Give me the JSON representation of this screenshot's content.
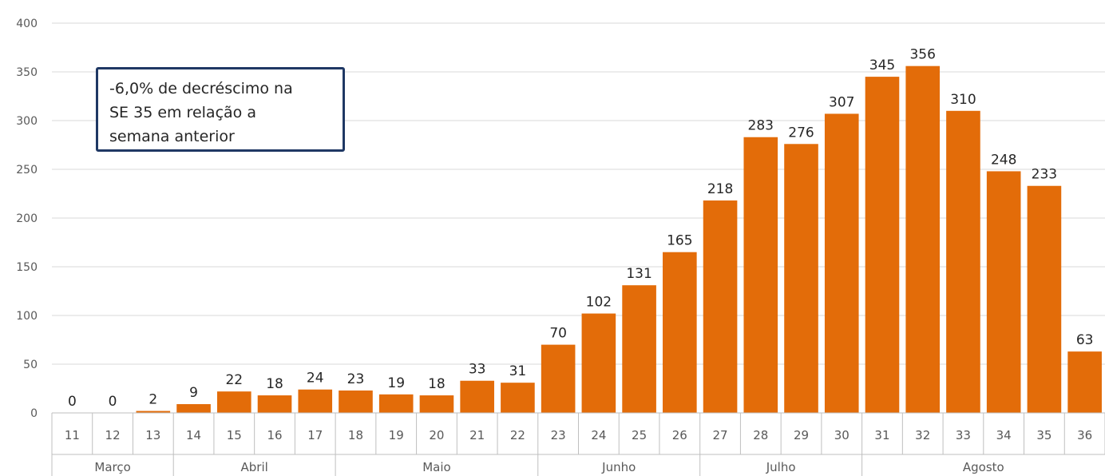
{
  "chart_data": {
    "type": "bar",
    "title": "",
    "xlabel": "",
    "ylabel": "",
    "ylim": [
      0,
      400
    ],
    "yticks": [
      0,
      50,
      100,
      150,
      200,
      250,
      300,
      350,
      400
    ],
    "grid": true,
    "categories": [
      "11",
      "12",
      "13",
      "14",
      "15",
      "16",
      "17",
      "18",
      "19",
      "20",
      "21",
      "22",
      "23",
      "24",
      "25",
      "26",
      "27",
      "28",
      "29",
      "30",
      "31",
      "32",
      "33",
      "34",
      "35",
      "36"
    ],
    "values": [
      0,
      0,
      2,
      9,
      22,
      18,
      24,
      23,
      19,
      18,
      33,
      31,
      70,
      102,
      131,
      165,
      218,
      283,
      276,
      307,
      345,
      356,
      310,
      248,
      233,
      63
    ],
    "month_groups": [
      {
        "label": "Março",
        "span": 3
      },
      {
        "label": "Abril",
        "span": 4
      },
      {
        "label": "Maio",
        "span": 5
      },
      {
        "label": "Junho",
        "span": 4
      },
      {
        "label": "Julho",
        "span": 4
      },
      {
        "label": "Agosto",
        "span": 6
      }
    ],
    "bar_color": "#e36c09",
    "annotation": {
      "lines": [
        "-6,0% de decréscimo na",
        "SE 35 em relação a",
        "semana anterior"
      ],
      "border_color": "#1f3864"
    }
  }
}
